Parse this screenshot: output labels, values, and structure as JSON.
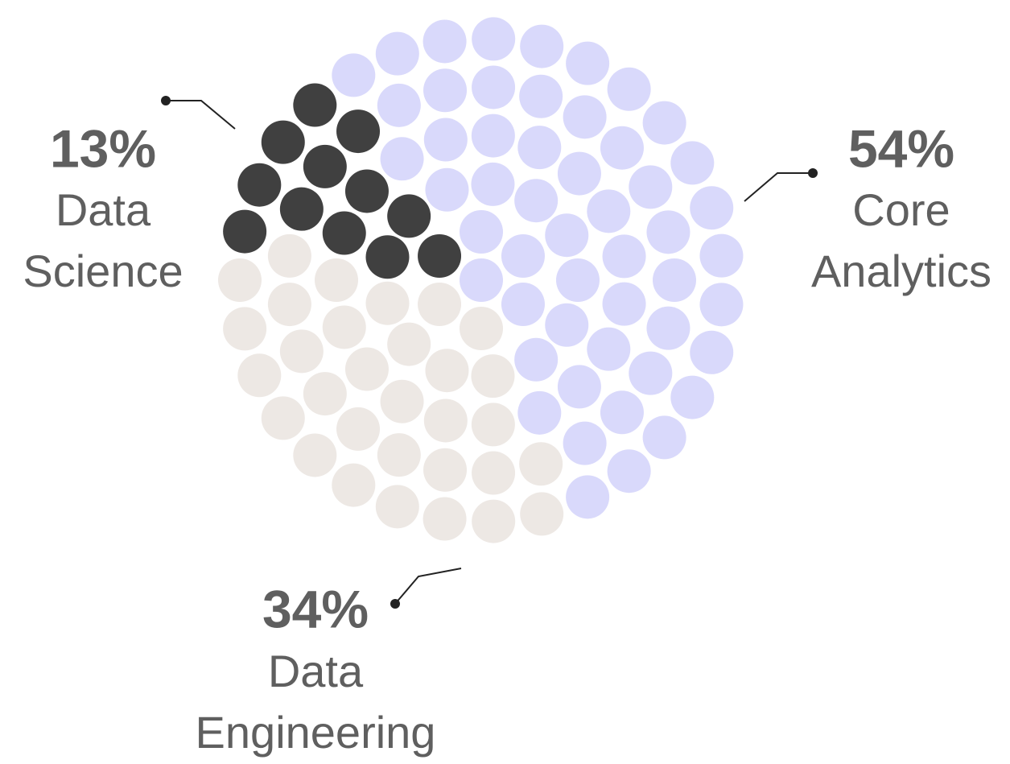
{
  "chart_data": {
    "type": "dot-pie",
    "categories": [
      "Core Analytics",
      "Data Engineering",
      "Data Science"
    ],
    "values": [
      54,
      34,
      13
    ],
    "value_labels": [
      "54%",
      "34%",
      "13%"
    ],
    "colors": [
      "#d9d9fb",
      "#ede8e4",
      "#404040"
    ]
  }
}
